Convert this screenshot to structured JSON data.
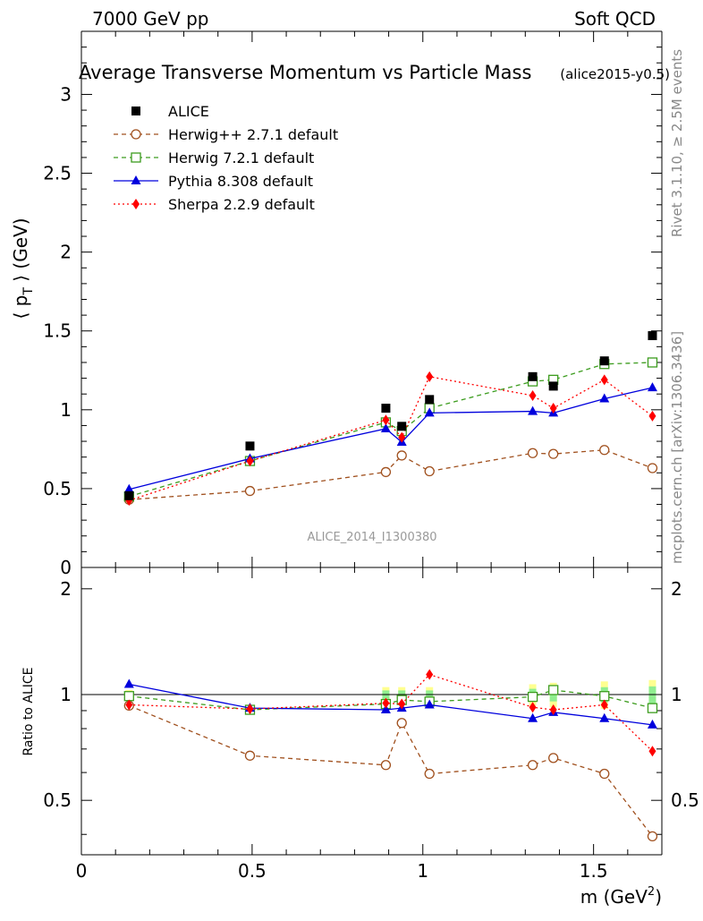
{
  "header": {
    "left": "7000 GeV pp",
    "right": "Soft QCD"
  },
  "side_text": {
    "rivet": "Rivet 3.1.10, ≥ 2.5M events",
    "mcplots": "mcplots.cern.ch [arXiv:1306.3436]"
  },
  "colors": {
    "data": "#000000",
    "herwigpp": "#a0501e",
    "herwig7": "#3c9c1e",
    "pythia": "#0000dd",
    "sherpa": "#ff0000",
    "band_inner": "#90ee90",
    "band_outer": "#ffff90"
  },
  "chart_data": [
    {
      "type": "scatter",
      "title": "Average Transverse Momentum vs Particle Mass",
      "subtitle": "(alice2015-y0.5)",
      "ylabel_main": "⟨ p",
      "ylabel_sub": "T",
      "ylabel_tail": " ⟩ (GeV)",
      "watermark": "ALICE_2014_I1300380",
      "xlim": [
        0,
        1.7
      ],
      "ylim": [
        0,
        3.4
      ],
      "yticks": [
        "0",
        "0.5",
        "1",
        "1.5",
        "2",
        "2.5",
        "3"
      ],
      "x": [
        0.1396,
        0.4937,
        0.8917,
        0.9383,
        1.0195,
        1.3217,
        1.3822,
        1.5317,
        1.6724
      ],
      "series": [
        {
          "name": "ALICE",
          "style": "data",
          "values": [
            0.455,
            0.77,
            1.01,
            0.895,
            1.065,
            1.21,
            1.15,
            1.31,
            1.47
          ]
        },
        {
          "name": "Herwig++ 2.7.1 default",
          "style": "herwigpp",
          "values": [
            0.43,
            0.485,
            0.605,
            0.71,
            0.61,
            0.725,
            0.72,
            0.745,
            0.63
          ]
        },
        {
          "name": "Herwig 7.2.1 default",
          "style": "herwig7",
          "values": [
            0.45,
            0.675,
            0.92,
            0.865,
            1.01,
            1.18,
            1.19,
            1.29,
            1.3
          ]
        },
        {
          "name": "Pythia 8.308 default",
          "style": "pythia",
          "values": [
            0.495,
            0.69,
            0.88,
            0.795,
            0.98,
            0.99,
            0.98,
            1.07,
            1.14
          ]
        },
        {
          "name": "Sherpa 2.2.9 default",
          "style": "sherpa",
          "values": [
            0.425,
            0.675,
            0.935,
            0.825,
            1.21,
            1.09,
            1.01,
            1.19,
            0.96
          ]
        }
      ]
    },
    {
      "type": "scatter",
      "title": "",
      "ylabel": "Ratio to ALICE",
      "xlabel_main": "m (GeV",
      "xlabel_sup": "2",
      "xlabel_tail": ")",
      "xlim": [
        0,
        1.7
      ],
      "ylim": [
        0.35,
        2.3
      ],
      "yscale": "log",
      "yticks": [
        "0.5",
        "1",
        "2"
      ],
      "xticks": [
        "0",
        "0.5",
        "1",
        "1.5"
      ],
      "x": [
        0.1396,
        0.4937,
        0.8917,
        0.9383,
        1.0195,
        1.3217,
        1.3822,
        1.5317,
        1.6724
      ],
      "band_halfwidth": [
        0.03,
        0.0,
        0.05,
        0.05,
        0.05,
        0.07,
        0.08,
        0.09,
        0.1
      ],
      "series": [
        {
          "name": "Herwig++ 2.7.1 default",
          "style": "herwigpp",
          "values": [
            0.93,
            0.67,
            0.63,
            0.83,
            0.595,
            0.63,
            0.66,
            0.595,
            0.395
          ]
        },
        {
          "name": "Herwig 7.2.1 default",
          "style": "herwig7",
          "values": [
            0.99,
            0.905,
            0.94,
            0.965,
            0.955,
            0.985,
            1.03,
            0.99,
            0.915
          ]
        },
        {
          "name": "Pythia 8.308 default",
          "style": "pythia",
          "values": [
            1.07,
            0.915,
            0.905,
            0.915,
            0.935,
            0.855,
            0.89,
            0.855,
            0.82
          ]
        },
        {
          "name": "Sherpa 2.2.9 default",
          "style": "sherpa",
          "values": [
            0.935,
            0.91,
            0.945,
            0.94,
            1.14,
            0.92,
            0.905,
            0.935,
            0.69
          ]
        }
      ]
    }
  ]
}
